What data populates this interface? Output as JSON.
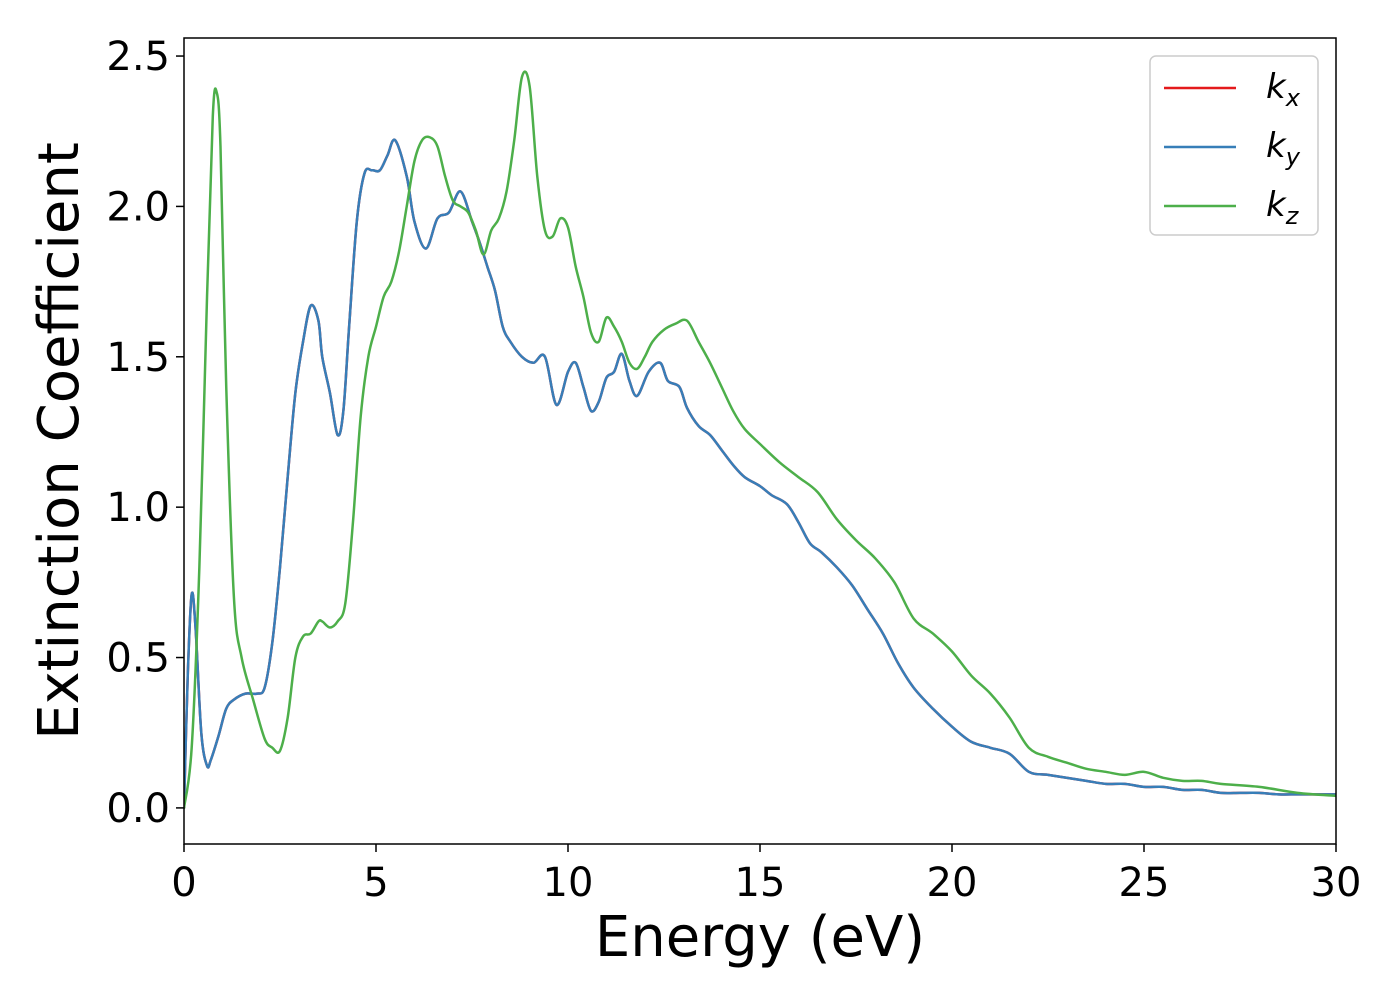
{
  "chart_data": {
    "type": "line",
    "xlabel": "Energy (eV)",
    "ylabel": "Extinction Coefficient",
    "xlim": [
      0,
      30
    ],
    "ylim": [
      -0.12,
      2.56
    ],
    "xticks": [
      "0",
      "5",
      "10",
      "15",
      "20",
      "25",
      "30"
    ],
    "yticks": [
      "0.0",
      "0.5",
      "1.0",
      "1.5",
      "2.0",
      "2.5"
    ],
    "grid": false,
    "legend_position": "top-right",
    "series": [
      {
        "name": "k",
        "subscript": "x",
        "color": "#e41a1c",
        "x": [
          0,
          0.1,
          0.2,
          0.3,
          0.45,
          0.6,
          0.7,
          0.9,
          1.1,
          1.3,
          1.6,
          1.9,
          2.1,
          2.3,
          2.5,
          2.7,
          2.9,
          3.1,
          3.3,
          3.5,
          3.6,
          3.8,
          4.0,
          4.15,
          4.3,
          4.5,
          4.7,
          4.9,
          5.1,
          5.3,
          5.5,
          5.8,
          6.0,
          6.3,
          6.6,
          6.9,
          7.2,
          7.5,
          7.7,
          7.9,
          8.1,
          8.3,
          8.5,
          8.8,
          9.1,
          9.4,
          9.7,
          10.0,
          10.2,
          10.4,
          10.6,
          10.8,
          11.0,
          11.2,
          11.4,
          11.6,
          11.8,
          12.1,
          12.4,
          12.6,
          12.9,
          13.1,
          13.4,
          13.7,
          14.0,
          14.3,
          14.6,
          15.0,
          15.3,
          15.7,
          16.0,
          16.3,
          16.6,
          17.0,
          17.4,
          17.8,
          18.2,
          18.6,
          19.0,
          19.5,
          20.0,
          20.5,
          21.0,
          21.5,
          22.0,
          22.5,
          23.0,
          23.5,
          24.0,
          24.5,
          25.0,
          25.5,
          26.0,
          26.5,
          27.0,
          27.5,
          28.0,
          28.5,
          29.0,
          29.5,
          30.0
        ],
        "values": [
          0.0,
          0.45,
          0.71,
          0.6,
          0.25,
          0.14,
          0.16,
          0.24,
          0.33,
          0.36,
          0.38,
          0.38,
          0.4,
          0.55,
          0.8,
          1.1,
          1.38,
          1.55,
          1.67,
          1.62,
          1.5,
          1.38,
          1.24,
          1.32,
          1.6,
          1.95,
          2.11,
          2.12,
          2.12,
          2.17,
          2.22,
          2.1,
          1.95,
          1.86,
          1.96,
          1.98,
          2.05,
          1.95,
          1.88,
          1.8,
          1.72,
          1.6,
          1.55,
          1.5,
          1.48,
          1.5,
          1.34,
          1.45,
          1.48,
          1.4,
          1.32,
          1.35,
          1.43,
          1.45,
          1.51,
          1.42,
          1.37,
          1.45,
          1.48,
          1.42,
          1.4,
          1.33,
          1.27,
          1.24,
          1.19,
          1.14,
          1.1,
          1.07,
          1.04,
          1.01,
          0.95,
          0.88,
          0.85,
          0.8,
          0.74,
          0.66,
          0.58,
          0.48,
          0.4,
          0.33,
          0.27,
          0.22,
          0.2,
          0.18,
          0.12,
          0.11,
          0.1,
          0.09,
          0.08,
          0.08,
          0.07,
          0.07,
          0.06,
          0.06,
          0.05,
          0.05,
          0.05,
          0.045,
          0.045,
          0.045,
          0.045
        ]
      },
      {
        "name": "k",
        "subscript": "y",
        "color": "#377eb8",
        "x": [
          0,
          0.1,
          0.2,
          0.3,
          0.45,
          0.6,
          0.7,
          0.9,
          1.1,
          1.3,
          1.6,
          1.9,
          2.1,
          2.3,
          2.5,
          2.7,
          2.9,
          3.1,
          3.3,
          3.5,
          3.6,
          3.8,
          4.0,
          4.15,
          4.3,
          4.5,
          4.7,
          4.9,
          5.1,
          5.3,
          5.5,
          5.8,
          6.0,
          6.3,
          6.6,
          6.9,
          7.2,
          7.5,
          7.7,
          7.9,
          8.1,
          8.3,
          8.5,
          8.8,
          9.1,
          9.4,
          9.7,
          10.0,
          10.2,
          10.4,
          10.6,
          10.8,
          11.0,
          11.2,
          11.4,
          11.6,
          11.8,
          12.1,
          12.4,
          12.6,
          12.9,
          13.1,
          13.4,
          13.7,
          14.0,
          14.3,
          14.6,
          15.0,
          15.3,
          15.7,
          16.0,
          16.3,
          16.6,
          17.0,
          17.4,
          17.8,
          18.2,
          18.6,
          19.0,
          19.5,
          20.0,
          20.5,
          21.0,
          21.5,
          22.0,
          22.5,
          23.0,
          23.5,
          24.0,
          24.5,
          25.0,
          25.5,
          26.0,
          26.5,
          27.0,
          27.5,
          28.0,
          28.5,
          29.0,
          29.5,
          30.0
        ],
        "values": [
          0.0,
          0.45,
          0.71,
          0.6,
          0.25,
          0.14,
          0.16,
          0.24,
          0.33,
          0.36,
          0.38,
          0.38,
          0.4,
          0.55,
          0.8,
          1.1,
          1.38,
          1.55,
          1.67,
          1.62,
          1.5,
          1.38,
          1.24,
          1.32,
          1.6,
          1.95,
          2.11,
          2.12,
          2.12,
          2.17,
          2.22,
          2.1,
          1.95,
          1.86,
          1.96,
          1.98,
          2.05,
          1.95,
          1.88,
          1.8,
          1.72,
          1.6,
          1.55,
          1.5,
          1.48,
          1.5,
          1.34,
          1.45,
          1.48,
          1.4,
          1.32,
          1.35,
          1.43,
          1.45,
          1.51,
          1.42,
          1.37,
          1.45,
          1.48,
          1.42,
          1.4,
          1.33,
          1.27,
          1.24,
          1.19,
          1.14,
          1.1,
          1.07,
          1.04,
          1.01,
          0.95,
          0.88,
          0.85,
          0.8,
          0.74,
          0.66,
          0.58,
          0.48,
          0.4,
          0.33,
          0.27,
          0.22,
          0.2,
          0.18,
          0.12,
          0.11,
          0.1,
          0.09,
          0.08,
          0.08,
          0.07,
          0.07,
          0.06,
          0.06,
          0.05,
          0.05,
          0.05,
          0.045,
          0.045,
          0.045,
          0.045
        ]
      },
      {
        "name": "k",
        "subscript": "z",
        "color": "#4daf4a",
        "x": [
          0,
          0.2,
          0.4,
          0.6,
          0.75,
          0.85,
          0.95,
          1.1,
          1.3,
          1.5,
          1.8,
          2.1,
          2.3,
          2.5,
          2.7,
          2.9,
          3.1,
          3.3,
          3.5,
          3.6,
          3.8,
          4.0,
          4.2,
          4.4,
          4.6,
          4.8,
          5.0,
          5.2,
          5.4,
          5.6,
          5.8,
          6.0,
          6.2,
          6.4,
          6.6,
          6.8,
          7.0,
          7.2,
          7.4,
          7.6,
          7.8,
          8.0,
          8.2,
          8.4,
          8.6,
          8.8,
          9.0,
          9.2,
          9.4,
          9.6,
          9.8,
          10.0,
          10.2,
          10.4,
          10.6,
          10.8,
          11.0,
          11.2,
          11.4,
          11.6,
          11.8,
          12.0,
          12.2,
          12.5,
          12.8,
          13.1,
          13.4,
          13.7,
          14.0,
          14.3,
          14.6,
          15.0,
          15.5,
          16.0,
          16.5,
          17.0,
          17.5,
          18.0,
          18.5,
          19.0,
          19.5,
          20.0,
          20.5,
          21.0,
          21.5,
          22.0,
          22.5,
          23.0,
          23.5,
          24.0,
          24.5,
          25.0,
          25.5,
          26.0,
          26.5,
          27.0,
          28.0,
          29.0,
          30.0
        ],
        "values": [
          0.0,
          0.2,
          0.8,
          1.7,
          2.3,
          2.38,
          2.2,
          1.4,
          0.7,
          0.5,
          0.36,
          0.23,
          0.2,
          0.19,
          0.3,
          0.5,
          0.57,
          0.58,
          0.62,
          0.62,
          0.6,
          0.62,
          0.68,
          0.95,
          1.3,
          1.5,
          1.6,
          1.7,
          1.75,
          1.85,
          2.0,
          2.15,
          2.22,
          2.23,
          2.2,
          2.1,
          2.02,
          2.0,
          1.98,
          1.92,
          1.84,
          1.92,
          1.96,
          2.05,
          2.22,
          2.43,
          2.4,
          2.1,
          1.92,
          1.9,
          1.96,
          1.93,
          1.8,
          1.7,
          1.58,
          1.55,
          1.63,
          1.6,
          1.55,
          1.48,
          1.46,
          1.5,
          1.55,
          1.59,
          1.61,
          1.62,
          1.55,
          1.48,
          1.4,
          1.32,
          1.26,
          1.21,
          1.15,
          1.1,
          1.05,
          0.96,
          0.89,
          0.83,
          0.75,
          0.63,
          0.58,
          0.52,
          0.44,
          0.38,
          0.3,
          0.2,
          0.17,
          0.15,
          0.13,
          0.12,
          0.11,
          0.12,
          0.1,
          0.09,
          0.09,
          0.08,
          0.07,
          0.05,
          0.04
        ]
      }
    ]
  }
}
